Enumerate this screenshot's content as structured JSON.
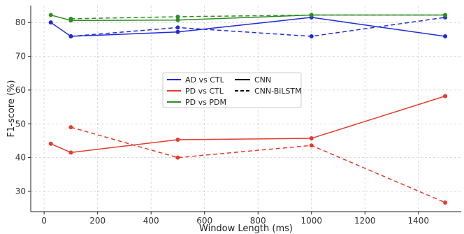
{
  "chart_data": {
    "type": "line",
    "xlabel": "Window Length (ms)",
    "ylabel": "F1-score (%)",
    "xlim": [
      -50,
      1560
    ],
    "ylim": [
      24,
      85
    ],
    "x_ticks": [
      0,
      200,
      400,
      600,
      800,
      1000,
      1200,
      1400
    ],
    "y_ticks": [
      30,
      40,
      50,
      60,
      70,
      80
    ],
    "grid": true,
    "legend_position": "center",
    "model_legend": [
      {
        "name": "CNN",
        "dash": "solid"
      },
      {
        "name": "CNN-BiLSTM",
        "dash": "dashed"
      }
    ],
    "series": [
      {
        "name": "AD vs CTL",
        "model": "CNN",
        "color": "#1f2bd6",
        "x": [
          25,
          100,
          500,
          1000,
          1500
        ],
        "values": [
          80.0,
          75.9,
          77.2,
          81.5,
          75.9
        ]
      },
      {
        "name": "AD vs CTL",
        "model": "CNN-BiLSTM",
        "color": "#1f2bd6",
        "x": [
          100,
          500,
          1000,
          1500
        ],
        "values": [
          75.9,
          78.5,
          75.9,
          81.5
        ]
      },
      {
        "name": "PD vs CTL",
        "model": "CNN",
        "color": "#e33b2e",
        "x": [
          25,
          100,
          500,
          1000,
          1500
        ],
        "values": [
          44.1,
          41.5,
          45.3,
          45.7,
          58.2
        ]
      },
      {
        "name": "PD vs CTL",
        "model": "CNN-BiLSTM",
        "color": "#e33b2e",
        "x": [
          100,
          500,
          1000,
          1500
        ],
        "values": [
          49.0,
          40.0,
          43.6,
          26.7
        ]
      },
      {
        "name": "PD vs PDM",
        "model": "CNN",
        "color": "#2e8b22",
        "x": [
          25,
          100,
          500,
          1000,
          1500
        ],
        "values": [
          82.2,
          80.6,
          80.7,
          82.2,
          82.2
        ]
      },
      {
        "name": "PD vs PDM",
        "model": "CNN-BiLSTM",
        "color": "#2e8b22",
        "x": [
          100,
          500,
          1000,
          1500
        ],
        "values": [
          81.1,
          81.7,
          82.2,
          82.2
        ]
      }
    ],
    "legend_entries": [
      {
        "name": "AD vs CTL",
        "color": "#1f2bd6"
      },
      {
        "name": "PD vs CTL",
        "color": "#e33b2e"
      },
      {
        "name": "PD vs PDM",
        "color": "#2e8b22"
      }
    ]
  }
}
